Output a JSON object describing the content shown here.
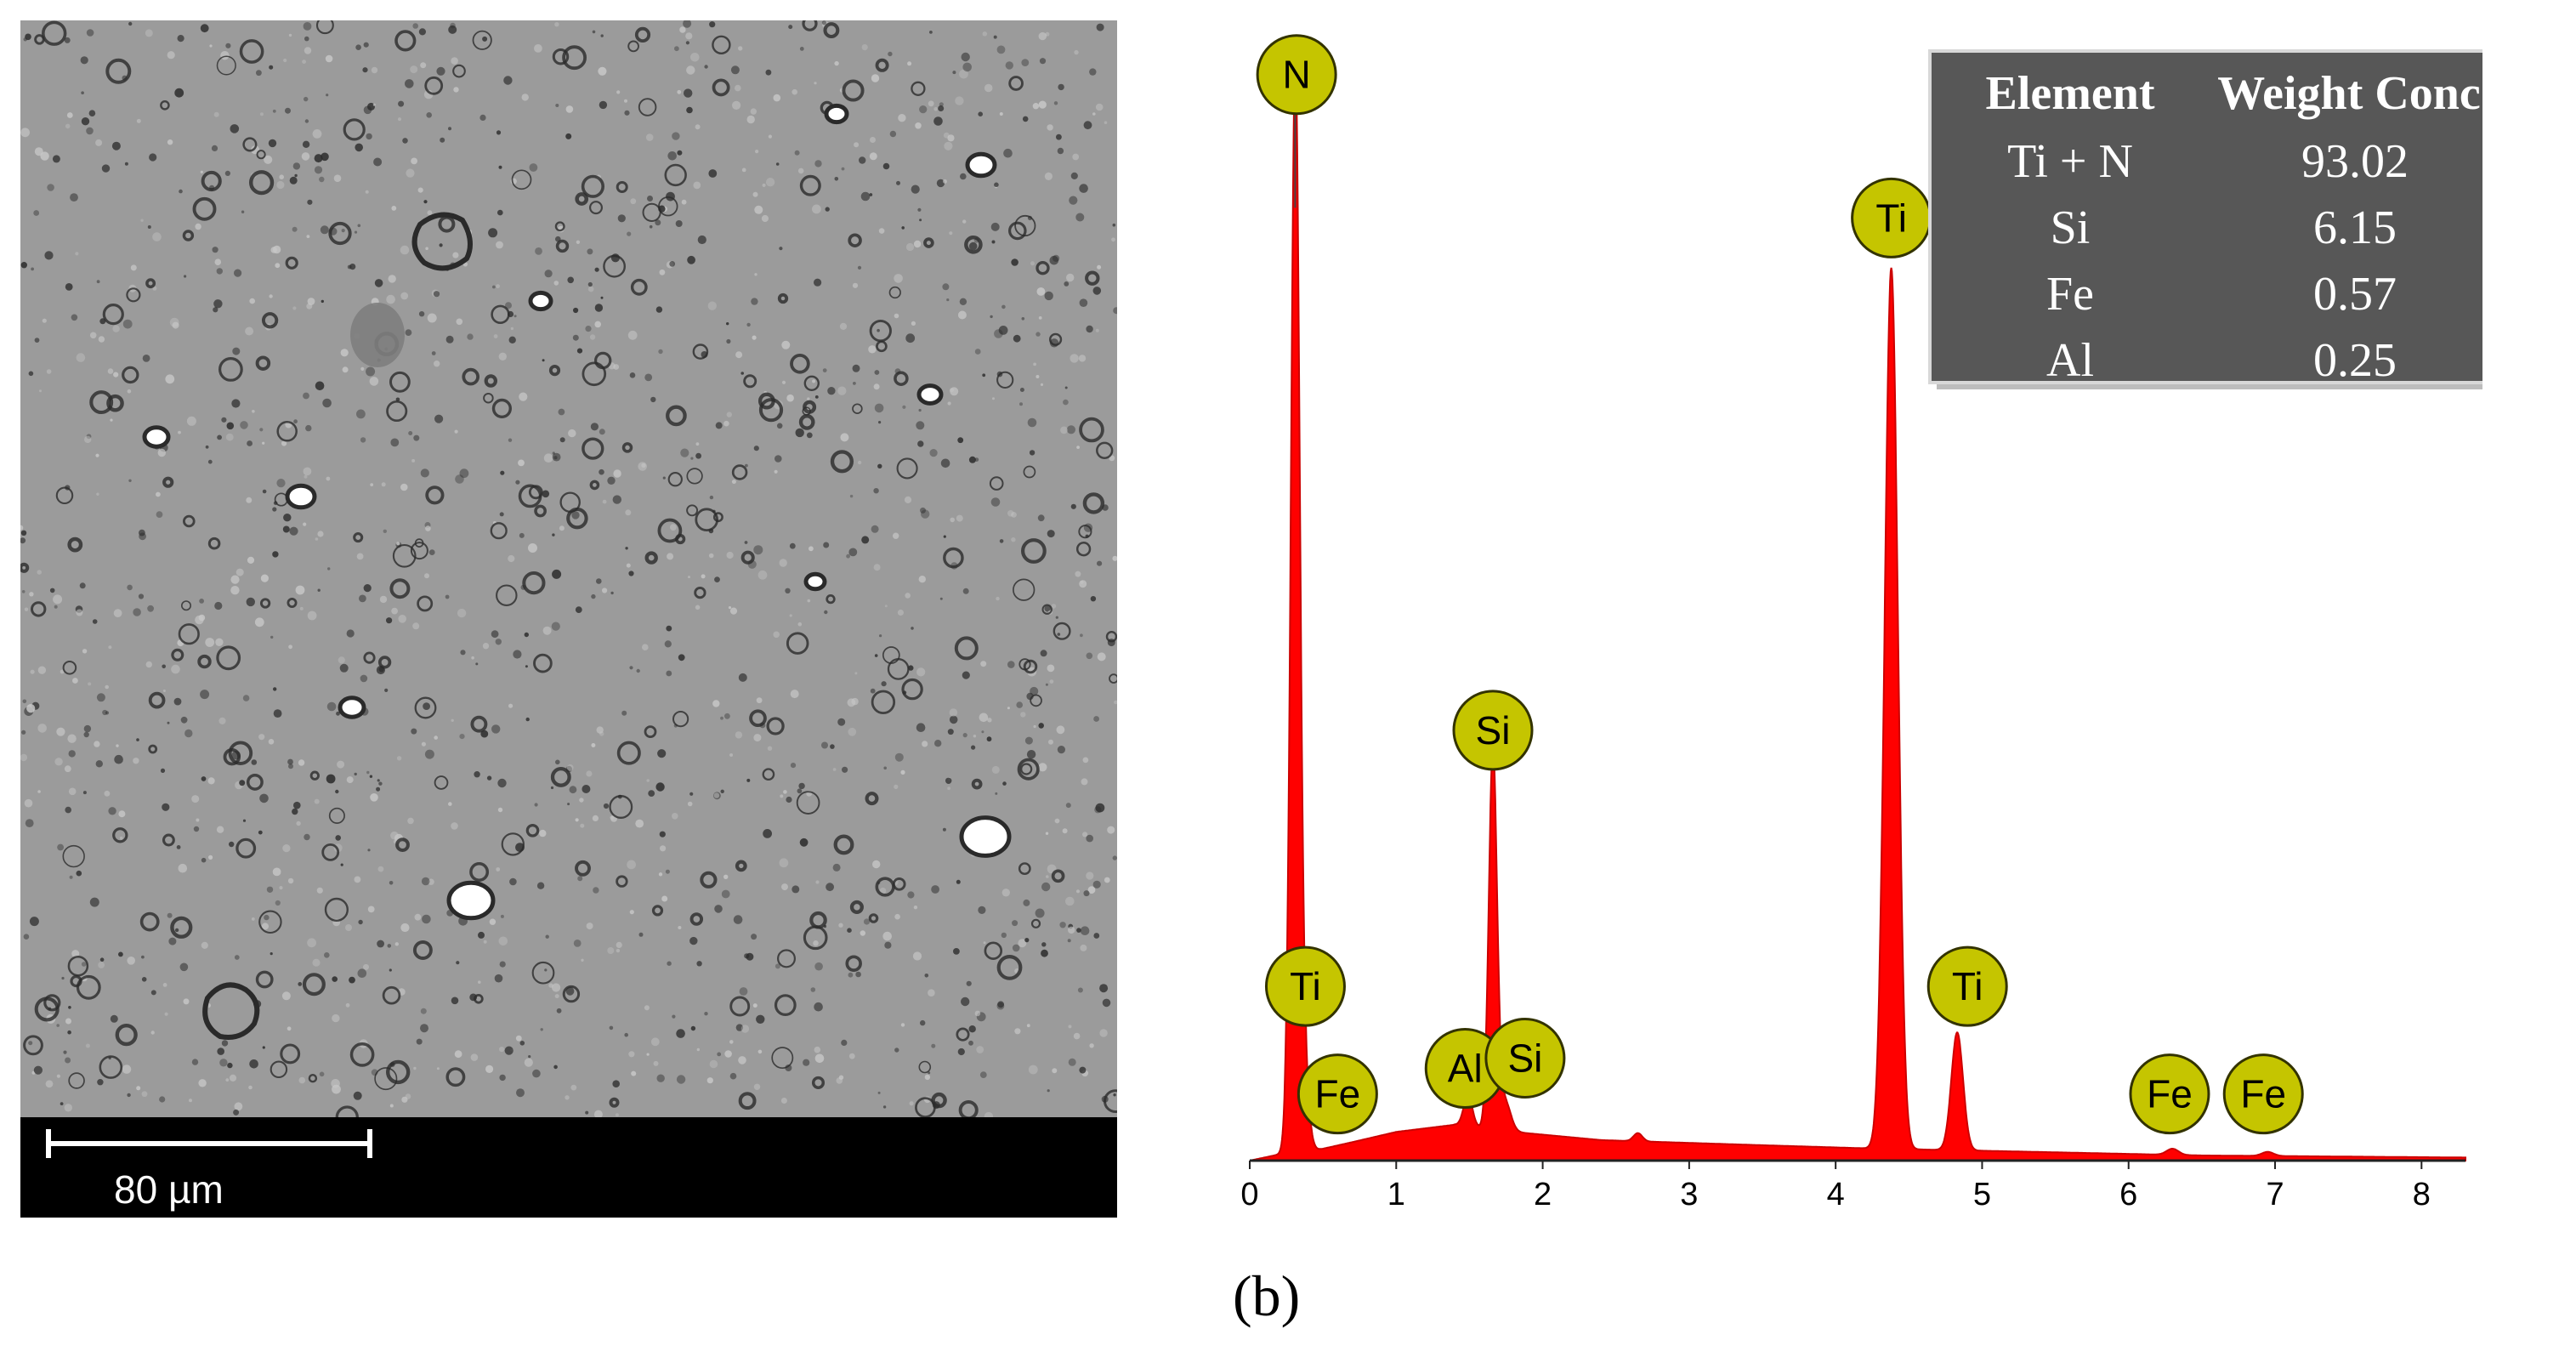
{
  "sem_image": {
    "scale_bar_label": "80 µm",
    "colors": {
      "background": "#9b9b9b",
      "speckle_dark": "#2a2a2a",
      "speckle_light": "#c8c8c8",
      "bright_particle": "#ffffff",
      "strip": "#000000"
    }
  },
  "panel_label": "(b)",
  "chart_data": {
    "type": "area",
    "title": "",
    "xlabel": "",
    "ylabel": "",
    "xlim": [
      0,
      8.3
    ],
    "ylim": [
      0,
      1.0
    ],
    "x_ticks": [
      "0",
      "1",
      "2",
      "3",
      "4",
      "5",
      "6",
      "7",
      "8"
    ],
    "colors": {
      "spectrum_fill": "#ff0000",
      "spectrum_line": "#cc0000",
      "marker_fill": "#c5c500",
      "marker_stroke": "#333300",
      "table_bg": "#575757",
      "table_border": "#d8d8d8"
    },
    "series": [
      {
        "peaks": [
          {
            "x": 0.27,
            "y": 0.05,
            "w": 0.025
          },
          {
            "x": 0.31,
            "y": 0.93,
            "w": 0.028
          },
          {
            "x": 0.34,
            "y": 0.17,
            "w": 0.04
          },
          {
            "x": 1.49,
            "y": 0.03,
            "w": 0.03
          },
          {
            "x": 1.66,
            "y": 0.37,
            "w": 0.028
          },
          {
            "x": 1.74,
            "y": 0.03,
            "w": 0.04
          },
          {
            "x": 2.65,
            "y": 0.008,
            "w": 0.03
          },
          {
            "x": 4.38,
            "y": 0.86,
            "w": 0.045
          },
          {
            "x": 4.83,
            "y": 0.115,
            "w": 0.04
          },
          {
            "x": 6.3,
            "y": 0.006,
            "w": 0.04
          },
          {
            "x": 6.95,
            "y": 0.004,
            "w": 0.04
          }
        ],
        "baseline": [
          {
            "x": 0.0,
            "y": 0.0
          },
          {
            "x": 0.2,
            "y": 0.006
          },
          {
            "x": 0.45,
            "y": 0.01
          },
          {
            "x": 0.7,
            "y": 0.018
          },
          {
            "x": 1.0,
            "y": 0.028
          },
          {
            "x": 1.4,
            "y": 0.035
          },
          {
            "x": 1.8,
            "y": 0.028
          },
          {
            "x": 2.4,
            "y": 0.02
          },
          {
            "x": 3.5,
            "y": 0.015
          },
          {
            "x": 4.2,
            "y": 0.012
          },
          {
            "x": 5.2,
            "y": 0.009
          },
          {
            "x": 6.5,
            "y": 0.005
          },
          {
            "x": 8.3,
            "y": 0.003
          }
        ]
      }
    ],
    "peak_labels": [
      {
        "text": "N",
        "x": 0.32,
        "y": 1.06
      },
      {
        "text": "Ti",
        "x": 0.38,
        "y": 0.17
      },
      {
        "text": "Fe",
        "x": 0.6,
        "y": 0.065
      },
      {
        "text": "Si",
        "x": 1.66,
        "y": 0.42
      },
      {
        "text": "Al",
        "x": 1.47,
        "y": 0.09
      },
      {
        "text": "Si",
        "x": 1.88,
        "y": 0.1
      },
      {
        "text": "Ti",
        "x": 4.38,
        "y": 0.92
      },
      {
        "text": "Ti",
        "x": 4.9,
        "y": 0.17
      },
      {
        "text": "Fe",
        "x": 6.28,
        "y": 0.065
      },
      {
        "text": "Fe",
        "x": 6.92,
        "y": 0.065
      }
    ],
    "table": {
      "headers": [
        "Element",
        "Weight Conc."
      ],
      "rows": [
        [
          "Ti + N",
          "93.02"
        ],
        [
          "Si",
          "6.15"
        ],
        [
          "Fe",
          "0.57"
        ],
        [
          "Al",
          "0.25"
        ]
      ]
    }
  }
}
